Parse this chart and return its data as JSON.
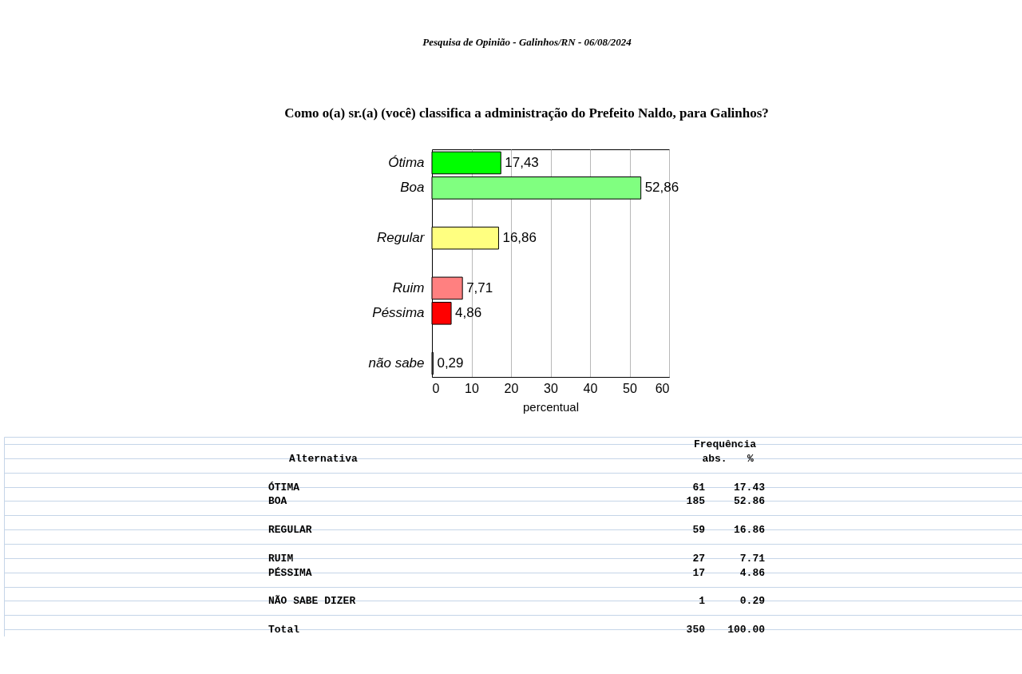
{
  "chart_data": [
    {
      "type": "bar",
      "orientation": "horizontal",
      "title": "Como o(a) sr.(a) (você) classifica a administração do Prefeito Naldo, para Galinhos?",
      "annotations": [
        "Pesquisa de Opinião - Galinhos/RN - 06/08/2024"
      ],
      "categories": [
        "Ótima",
        "Boa",
        null,
        "Regular",
        null,
        "Ruim",
        "Péssima",
        null,
        "não sabe"
      ],
      "values": [
        17.43,
        52.86,
        null,
        16.86,
        null,
        7.71,
        4.86,
        null,
        0.29
      ],
      "colors": [
        "#00ff00",
        "#80ff80",
        null,
        "#ffff80",
        null,
        "#ff8080",
        "#ff0000",
        null,
        "#808080"
      ],
      "value_labels": [
        "17,43",
        "52,86",
        null,
        "16,86",
        null,
        "7,71",
        "4,86",
        null,
        "0,29"
      ],
      "xlabel": "percentual",
      "xlim": [
        0,
        60
      ],
      "xticks": [
        0,
        10,
        20,
        30,
        40,
        50,
        60
      ],
      "grid": "x"
    },
    {
      "type": "other",
      "legend_title": "Frequência",
      "ylabel": "Alternativa",
      "categories": [
        null,
        "ÓTIMA",
        "BOA",
        null,
        "REGULAR",
        null,
        "RUIM",
        "PÉSSIMA",
        null,
        "NÃO SABE DIZER",
        null,
        "Total"
      ],
      "series": [
        {
          "name": "abs.",
          "values": [
            null,
            61,
            185,
            null,
            59,
            null,
            27,
            17,
            null,
            1,
            null,
            350
          ]
        },
        {
          "name": "%",
          "values": [
            null,
            17.43,
            52.86,
            null,
            16.86,
            null,
            7.71,
            4.86,
            null,
            0.29,
            null,
            100
          ],
          "value_labels": [
            null,
            "17.43",
            "52.86",
            null,
            "16.86",
            null,
            "7.71",
            "4.86",
            null,
            "0.29",
            null,
            "100.00"
          ]
        }
      ],
      "data_labels": true
    }
  ]
}
